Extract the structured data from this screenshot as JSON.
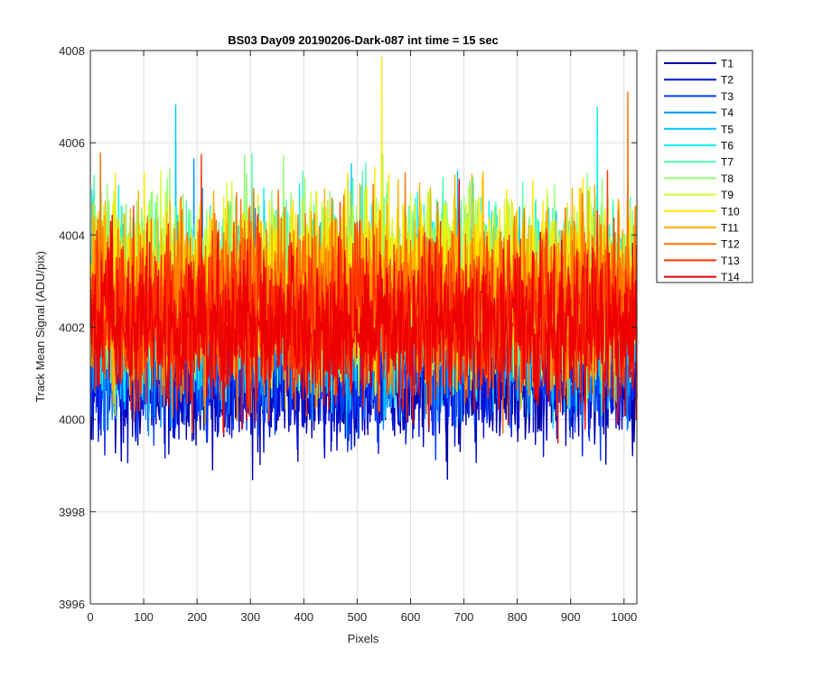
{
  "chart_data": {
    "type": "line",
    "title": "BS03 Day09 20190206-Dark-087 int time = 15 sec",
    "xlabel": "Pixels",
    "ylabel": "Track Mean Signal (ADU/pix)",
    "xlim": [
      0,
      1024
    ],
    "ylim": [
      3996,
      4008
    ],
    "xticks": [
      0,
      100,
      200,
      300,
      400,
      500,
      600,
      700,
      800,
      900,
      1000
    ],
    "yticks": [
      3996,
      3998,
      4000,
      4002,
      4004,
      4006,
      4008
    ],
    "grid": true,
    "legend_position": "outside-top-right",
    "series": [
      {
        "name": "T1",
        "color": "#0000a8",
        "center": 4000.8,
        "spread": 0.75
      },
      {
        "name": "T2",
        "color": "#0010d8",
        "center": 4001.0,
        "spread": 0.75
      },
      {
        "name": "T3",
        "color": "#0040ff",
        "center": 4001.3,
        "spread": 0.8
      },
      {
        "name": "T4",
        "color": "#0090ff",
        "center": 4001.8,
        "spread": 0.9
      },
      {
        "name": "T5",
        "color": "#00c8ff",
        "center": 4002.3,
        "spread": 1.0
      },
      {
        "name": "T6",
        "color": "#10f0f0",
        "center": 4002.7,
        "spread": 1.0
      },
      {
        "name": "T7",
        "color": "#50ffb0",
        "center": 4002.9,
        "spread": 1.0
      },
      {
        "name": "T8",
        "color": "#90ff70",
        "center": 4003.0,
        "spread": 1.0
      },
      {
        "name": "T9",
        "color": "#d0ff30",
        "center": 4003.0,
        "spread": 1.0
      },
      {
        "name": "T10",
        "color": "#ffe800",
        "center": 4002.9,
        "spread": 1.0
      },
      {
        "name": "T11",
        "color": "#ffb000",
        "center": 4002.7,
        "spread": 1.0
      },
      {
        "name": "T12",
        "color": "#ff7000",
        "center": 4002.5,
        "spread": 1.0
      },
      {
        "name": "T13",
        "color": "#ff3000",
        "center": 4002.2,
        "spread": 0.95
      },
      {
        "name": "T14",
        "color": "#ee0000",
        "center": 4002.0,
        "spread": 0.9
      }
    ]
  }
}
